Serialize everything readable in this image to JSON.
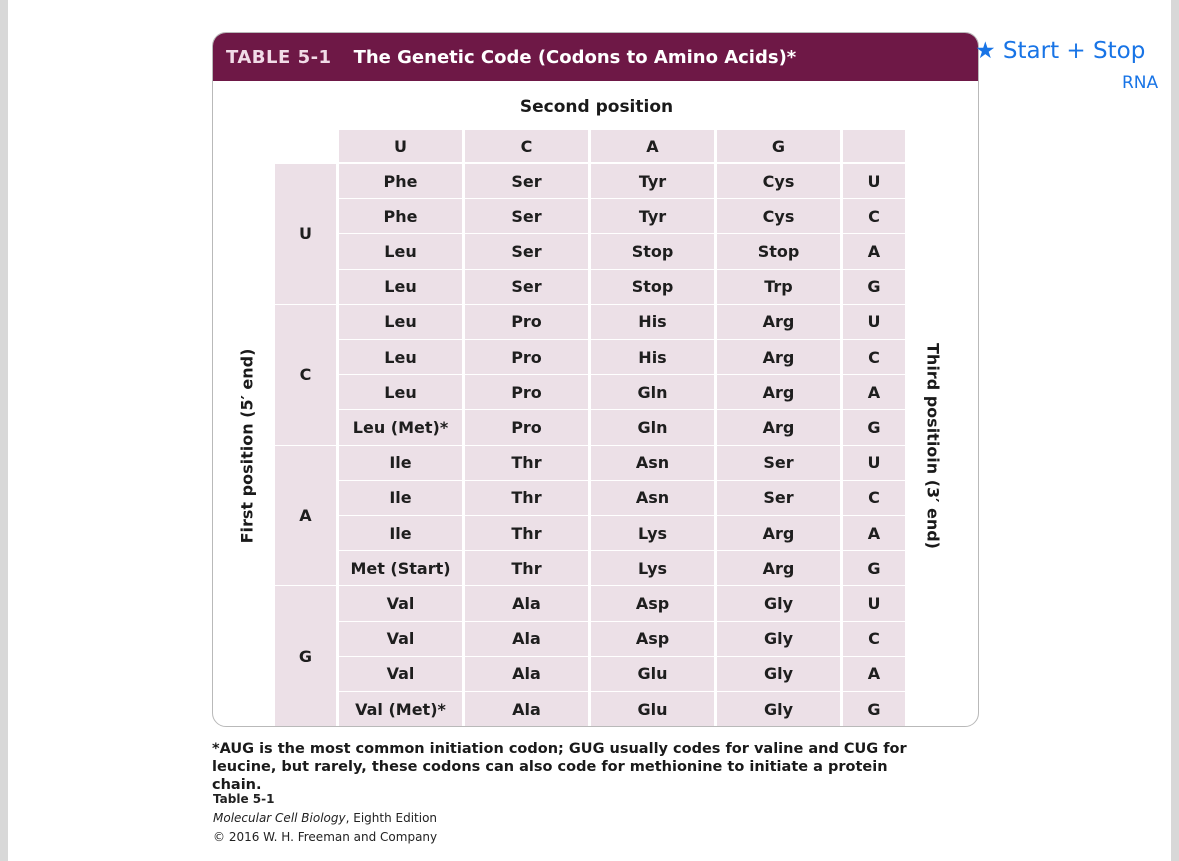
{
  "table": {
    "number": "TABLE 5-1",
    "title": "The Genetic Code (Codons to Amino Acids)*",
    "second_position_label": "Second position",
    "first_position_label": "First position (5′ end)",
    "third_position_label": "Third positioin (3′ end)",
    "second_bases": [
      "U",
      "C",
      "A",
      "G"
    ],
    "first_bases": [
      "U",
      "C",
      "A",
      "G"
    ],
    "third_bases": [
      "U",
      "C",
      "A",
      "G"
    ],
    "rows": [
      [
        "Phe",
        "Ser",
        "Tyr",
        "Cys"
      ],
      [
        "Phe",
        "Ser",
        "Tyr",
        "Cys"
      ],
      [
        "Leu",
        "Ser",
        "Stop",
        "Stop"
      ],
      [
        "Leu",
        "Ser",
        "Stop",
        "Trp"
      ],
      [
        "Leu",
        "Pro",
        "His",
        "Arg"
      ],
      [
        "Leu",
        "Pro",
        "His",
        "Arg"
      ],
      [
        "Leu",
        "Pro",
        "Gln",
        "Arg"
      ],
      [
        "Leu (Met)*",
        "Pro",
        "Gln",
        "Arg"
      ],
      [
        "Ile",
        "Thr",
        "Asn",
        "Ser"
      ],
      [
        "Ile",
        "Thr",
        "Asn",
        "Ser"
      ],
      [
        "Ile",
        "Thr",
        "Lys",
        "Arg"
      ],
      [
        "Met (Start)",
        "Thr",
        "Lys",
        "Arg"
      ],
      [
        "Val",
        "Ala",
        "Asp",
        "Gly"
      ],
      [
        "Val",
        "Ala",
        "Asp",
        "Gly"
      ],
      [
        "Val",
        "Ala",
        "Glu",
        "Gly"
      ],
      [
        "Val (Met)*",
        "Ala",
        "Glu",
        "Gly"
      ]
    ],
    "footnote": "*AUG is the most common initiation codon; GUG usually codes for valine and CUG for leucine, but rarely, these codons can also code for methionine to initiate a protein chain."
  },
  "credit": {
    "label": "Table 5-1",
    "book": "Molecular Cell Biology",
    "edition": ", Eighth Edition",
    "copyright": "© 2016 W. H. Freeman and Company"
  },
  "annotation": {
    "line1": "★ Start + Stop",
    "line2": "RNA",
    "color": "#1874e6"
  },
  "colors": {
    "title_bar": "#6e1846",
    "cell_fill": "#ece0e7"
  }
}
